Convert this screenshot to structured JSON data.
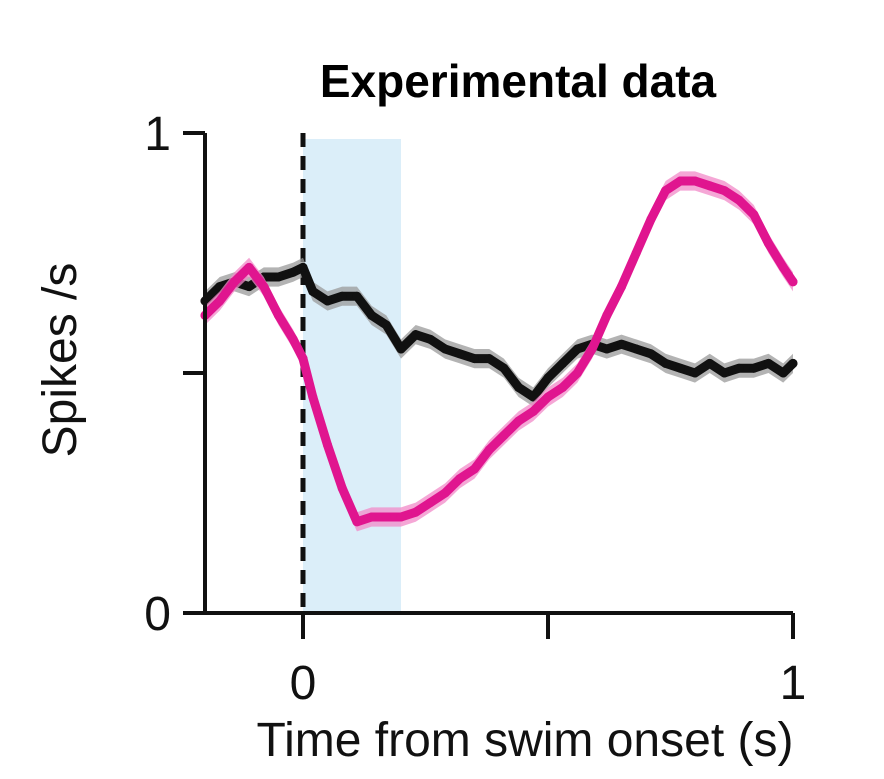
{
  "chart_data": {
    "type": "line",
    "title": "Experimental data",
    "xlabel": "Time from swim onset (s)",
    "ylabel": "Spikes /s",
    "xlim": [
      -0.2,
      1.0
    ],
    "ylim": [
      0,
      1
    ],
    "x_ticks": [
      0,
      0.5,
      1
    ],
    "x_tick_labels": [
      "0",
      "",
      "1"
    ],
    "y_ticks": [
      0,
      0.5,
      1
    ],
    "y_tick_labels": [
      "0",
      "",
      "1"
    ],
    "grid": false,
    "legend": "none",
    "onset_marker": {
      "x": 0,
      "style": "dashed",
      "color": "#111111"
    },
    "shaded_region": {
      "x_start": 0,
      "x_end": 0.2,
      "color": "#dbeef9"
    },
    "series": [
      {
        "color": "#111111",
        "band_color": "#9a9a9a",
        "error_band": 0.02,
        "x": [
          -0.2,
          -0.17,
          -0.14,
          -0.11,
          -0.08,
          -0.05,
          -0.02,
          0.0,
          0.02,
          0.05,
          0.08,
          0.11,
          0.14,
          0.17,
          0.2,
          0.23,
          0.26,
          0.29,
          0.32,
          0.35,
          0.38,
          0.41,
          0.44,
          0.47,
          0.5,
          0.53,
          0.56,
          0.59,
          0.62,
          0.65,
          0.68,
          0.71,
          0.74,
          0.77,
          0.8,
          0.83,
          0.86,
          0.89,
          0.92,
          0.95,
          0.98,
          1.0
        ],
        "values": [
          0.65,
          0.68,
          0.69,
          0.68,
          0.7,
          0.7,
          0.71,
          0.72,
          0.67,
          0.65,
          0.66,
          0.66,
          0.62,
          0.6,
          0.55,
          0.58,
          0.57,
          0.55,
          0.54,
          0.53,
          0.53,
          0.51,
          0.47,
          0.45,
          0.49,
          0.52,
          0.55,
          0.56,
          0.55,
          0.56,
          0.55,
          0.54,
          0.52,
          0.51,
          0.5,
          0.52,
          0.5,
          0.51,
          0.51,
          0.52,
          0.5,
          0.52
        ]
      },
      {
        "color": "#e0158f",
        "band_color": "#f18ac8",
        "error_band": 0.02,
        "x": [
          -0.2,
          -0.17,
          -0.14,
          -0.11,
          -0.08,
          -0.05,
          -0.02,
          0.0,
          0.02,
          0.05,
          0.08,
          0.11,
          0.14,
          0.17,
          0.2,
          0.23,
          0.26,
          0.29,
          0.32,
          0.35,
          0.38,
          0.41,
          0.44,
          0.47,
          0.5,
          0.53,
          0.56,
          0.59,
          0.62,
          0.65,
          0.68,
          0.71,
          0.74,
          0.77,
          0.8,
          0.83,
          0.86,
          0.89,
          0.92,
          0.95,
          0.98,
          1.0
        ],
        "values": [
          0.62,
          0.65,
          0.69,
          0.72,
          0.68,
          0.62,
          0.57,
          0.53,
          0.45,
          0.35,
          0.26,
          0.19,
          0.2,
          0.2,
          0.2,
          0.21,
          0.23,
          0.25,
          0.28,
          0.3,
          0.34,
          0.37,
          0.4,
          0.42,
          0.45,
          0.47,
          0.5,
          0.55,
          0.62,
          0.68,
          0.75,
          0.82,
          0.88,
          0.9,
          0.9,
          0.89,
          0.88,
          0.86,
          0.83,
          0.77,
          0.72,
          0.69
        ]
      }
    ]
  }
}
